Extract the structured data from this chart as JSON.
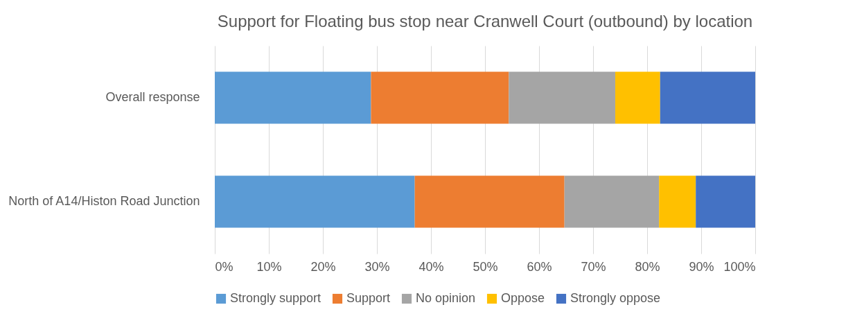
{
  "chart_data": {
    "type": "bar",
    "orientation": "horizontal",
    "stacked": true,
    "title": "Support for Floating bus stop near Cranwell Court (outbound) by location",
    "categories": [
      "Overall response",
      "North of A14/Histon Road Junction"
    ],
    "series": [
      {
        "name": "Strongly support",
        "color": "#5b9bd5",
        "values": [
          28.9,
          37.0
        ]
      },
      {
        "name": "Support",
        "color": "#ed7d31",
        "values": [
          25.5,
          27.7
        ]
      },
      {
        "name": "No opinion",
        "color": "#a5a5a5",
        "values": [
          19.7,
          17.5
        ]
      },
      {
        "name": "Oppose",
        "color": "#ffc000",
        "values": [
          8.3,
          6.8
        ]
      },
      {
        "name": "Strongly oppose",
        "color": "#4472c4",
        "values": [
          17.6,
          11.0
        ]
      }
    ],
    "xlim": [
      0,
      100
    ],
    "xticks": [
      {
        "value": 0,
        "label": "0%"
      },
      {
        "value": 10,
        "label": "10%"
      },
      {
        "value": 20,
        "label": "20%"
      },
      {
        "value": 30,
        "label": "30%"
      },
      {
        "value": 40,
        "label": "40%"
      },
      {
        "value": 50,
        "label": "50%"
      },
      {
        "value": 60,
        "label": "60%"
      },
      {
        "value": 70,
        "label": "70%"
      },
      {
        "value": 80,
        "label": "80%"
      },
      {
        "value": 90,
        "label": "90%"
      },
      {
        "value": 100,
        "label": "100%"
      }
    ],
    "grid": "x",
    "legend": "bottom"
  }
}
